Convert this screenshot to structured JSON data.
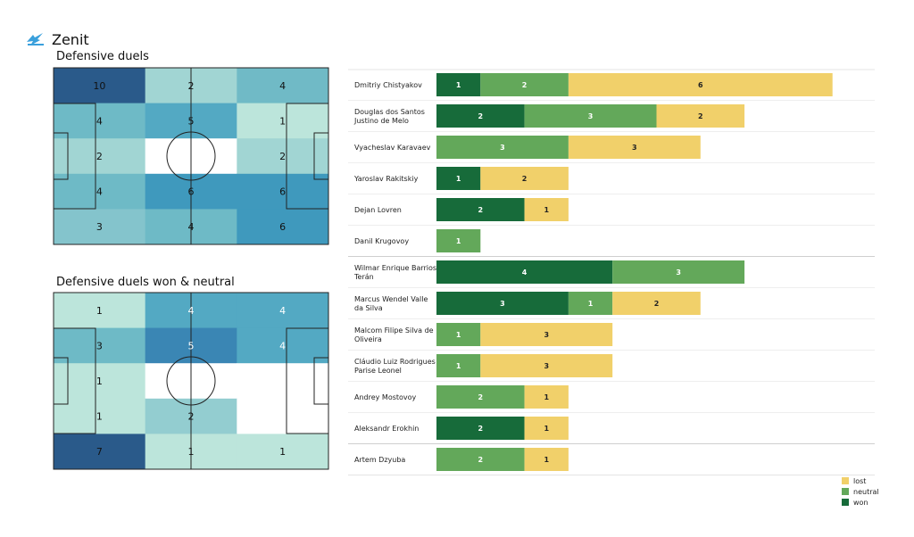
{
  "team": {
    "name": "Zenit",
    "logo": "zenit-logo"
  },
  "colors": {
    "won": "#176b3a",
    "neutral": "#63a85a",
    "lost": "#f1d06a"
  },
  "legend": [
    {
      "key": "lost",
      "label": "lost"
    },
    {
      "key": "neutral",
      "label": "neutral"
    },
    {
      "key": "won",
      "label": "won"
    }
  ],
  "chart_data": [
    {
      "type": "heatmap",
      "title": "Defensive duels",
      "values": [
        [
          10,
          2,
          4
        ],
        [
          4,
          5,
          1
        ],
        [
          2,
          0,
          2
        ],
        [
          4,
          6,
          6
        ],
        [
          3,
          4,
          6
        ]
      ],
      "cell_colors": [
        [
          "#2a5a8a",
          "#a1d5d3",
          "#70bac6"
        ],
        [
          "#6ebac6",
          "#53a9c3",
          "#bce5db"
        ],
        [
          "#a1d5d3",
          "#ffffff",
          "#a1d5d3"
        ],
        [
          "#6ebac6",
          "#3f99bd",
          "#3f99bd"
        ],
        [
          "#84c4cc",
          "#6ebac6",
          "#3f99bd"
        ]
      ]
    },
    {
      "type": "heatmap",
      "title": "Defensive duels won & neutral",
      "values": [
        [
          1,
          4,
          4
        ],
        [
          3,
          5,
          4
        ],
        [
          1,
          0,
          0
        ],
        [
          1,
          2,
          0
        ],
        [
          7,
          1,
          1
        ]
      ],
      "cell_colors": [
        [
          "#bce5db",
          "#53a9c3",
          "#53a9c3"
        ],
        [
          "#6ebac6",
          "#3a86b4",
          "#53a9c3"
        ],
        [
          "#bce5db",
          "#ffffff",
          "#ffffff"
        ],
        [
          "#bce5db",
          "#93cdd0",
          "#ffffff"
        ],
        [
          "#2a5a8a",
          "#bce5db",
          "#bce5db"
        ]
      ],
      "light_label_cells": [
        [
          0,
          1
        ],
        [
          0,
          2
        ],
        [
          1,
          1
        ],
        [
          1,
          2
        ]
      ]
    },
    {
      "type": "bar",
      "orientation": "horizontal",
      "stacked": true,
      "series_order": [
        "won",
        "neutral",
        "lost"
      ],
      "players": [
        {
          "name": [
            "Dmitriy Chistyakov"
          ],
          "won": 1,
          "neutral": 2,
          "lost": 6
        },
        {
          "name": [
            "Douglas dos Santos",
            "Justino de Melo"
          ],
          "won": 2,
          "neutral": 3,
          "lost": 2
        },
        {
          "name": [
            "Vyacheslav Karavaev"
          ],
          "won": 0,
          "neutral": 3,
          "lost": 3
        },
        {
          "name": [
            "Yaroslav Rakitskiy"
          ],
          "won": 1,
          "neutral": 0,
          "lost": 2
        },
        {
          "name": [
            "Dejan Lovren"
          ],
          "won": 2,
          "neutral": 0,
          "lost": 1
        },
        {
          "name": [
            "Danil Krugovoy"
          ],
          "won": 0,
          "neutral": 1,
          "lost": 0
        },
        {
          "name": [
            "Wilmar Enrique Barrios",
            "Terán"
          ],
          "won": 4,
          "neutral": 3,
          "lost": 0
        },
        {
          "name": [
            "Marcus Wendel Valle",
            "da Silva"
          ],
          "won": 3,
          "neutral": 1,
          "lost": 2
        },
        {
          "name": [
            "Malcom Filipe Silva de",
            "Oliveira"
          ],
          "won": 0,
          "neutral": 1,
          "lost": 3
        },
        {
          "name": [
            "Cláudio Luiz Rodrigues",
            "Parise Leonel"
          ],
          "won": 0,
          "neutral": 1,
          "lost": 3
        },
        {
          "name": [
            "Andrey Mostovoy"
          ],
          "won": 0,
          "neutral": 2,
          "lost": 1
        },
        {
          "name": [
            "Aleksandr Erokhin"
          ],
          "won": 2,
          "neutral": 0,
          "lost": 1
        },
        {
          "name": [
            "Artem Dzyuba"
          ],
          "won": 0,
          "neutral": 2,
          "lost": 1
        }
      ],
      "group_separators_after": [
        5,
        11
      ]
    }
  ]
}
